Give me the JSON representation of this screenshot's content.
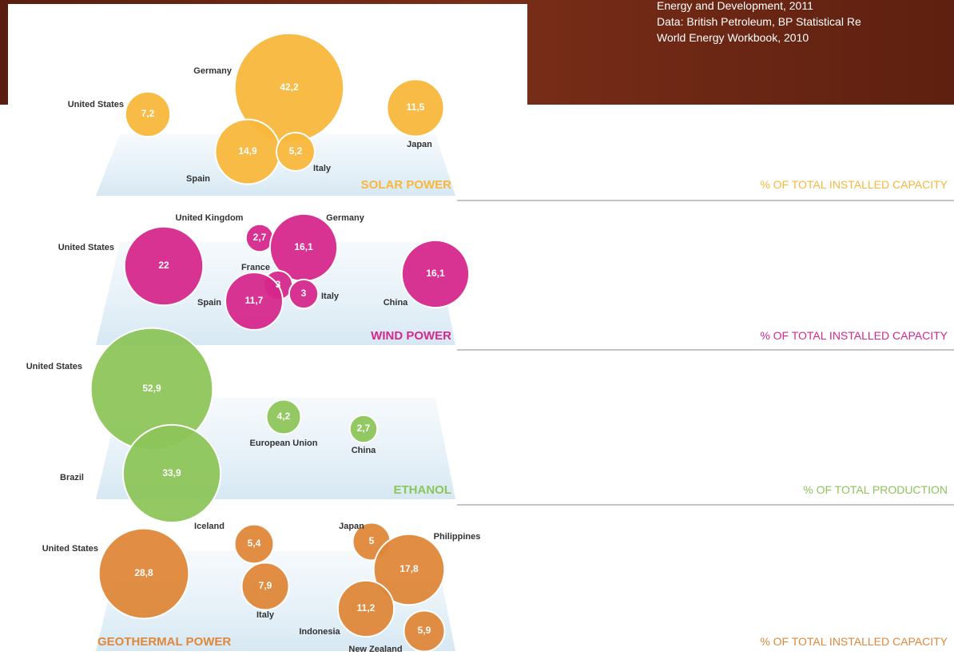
{
  "source": [
    "Energy and Development, 2011",
    "Data: British Petroleum, BP Statistical Re",
    "World Energy Workbook, 2010"
  ],
  "chart_data": [
    {
      "type": "bubble",
      "title": "SOLAR POWER",
      "subtitle": "% OF TOTAL INSTALLED CAPACITY",
      "color": "#f8b73c",
      "categories": [
        "United States",
        "Germany",
        "Japan",
        "Spain",
        "Italy"
      ],
      "values": [
        7.2,
        42.2,
        11.5,
        14.9,
        5.2
      ],
      "value_labels": [
        "7,2",
        "42,2",
        "11,5",
        "14,9",
        "5,2"
      ]
    },
    {
      "type": "bubble",
      "title": "WIND POWER",
      "subtitle": "% OF TOTAL INSTALLED CAPACITY",
      "color": "#d6288c",
      "categories": [
        "United States",
        "United Kingdom",
        "Germany",
        "France",
        "Spain",
        "Italy",
        "China"
      ],
      "values": [
        22,
        2.7,
        16.1,
        3,
        11.7,
        3,
        16.1
      ],
      "value_labels": [
        "22",
        "2,7",
        "16,1",
        "3",
        "11,7",
        "3",
        "16,1"
      ]
    },
    {
      "type": "bubble",
      "title": "ETHANOL",
      "subtitle": "% OF TOTAL PRODUCTION",
      "color": "#8dc55a",
      "categories": [
        "United States",
        "European Union",
        "China",
        "Brazil"
      ],
      "values": [
        52.9,
        4.2,
        2.7,
        33.9
      ],
      "value_labels": [
        "52,9",
        "4,2",
        "2,7",
        "33,9"
      ]
    },
    {
      "type": "bubble",
      "title": "GEOTHERMAL POWER",
      "subtitle": "% OF TOTAL INSTALLED CAPACITY",
      "color": "#df873a",
      "categories": [
        "United States",
        "Iceland",
        "Japan",
        "Philippines",
        "Italy",
        "Indonesia",
        "New Zealand"
      ],
      "values": [
        28.8,
        5.4,
        5,
        17.8,
        7.9,
        11.2,
        5.9
      ],
      "value_labels": [
        "28,8",
        "5,4",
        "5",
        "17,8",
        "7,9",
        "11,2",
        "5,9"
      ]
    }
  ]
}
